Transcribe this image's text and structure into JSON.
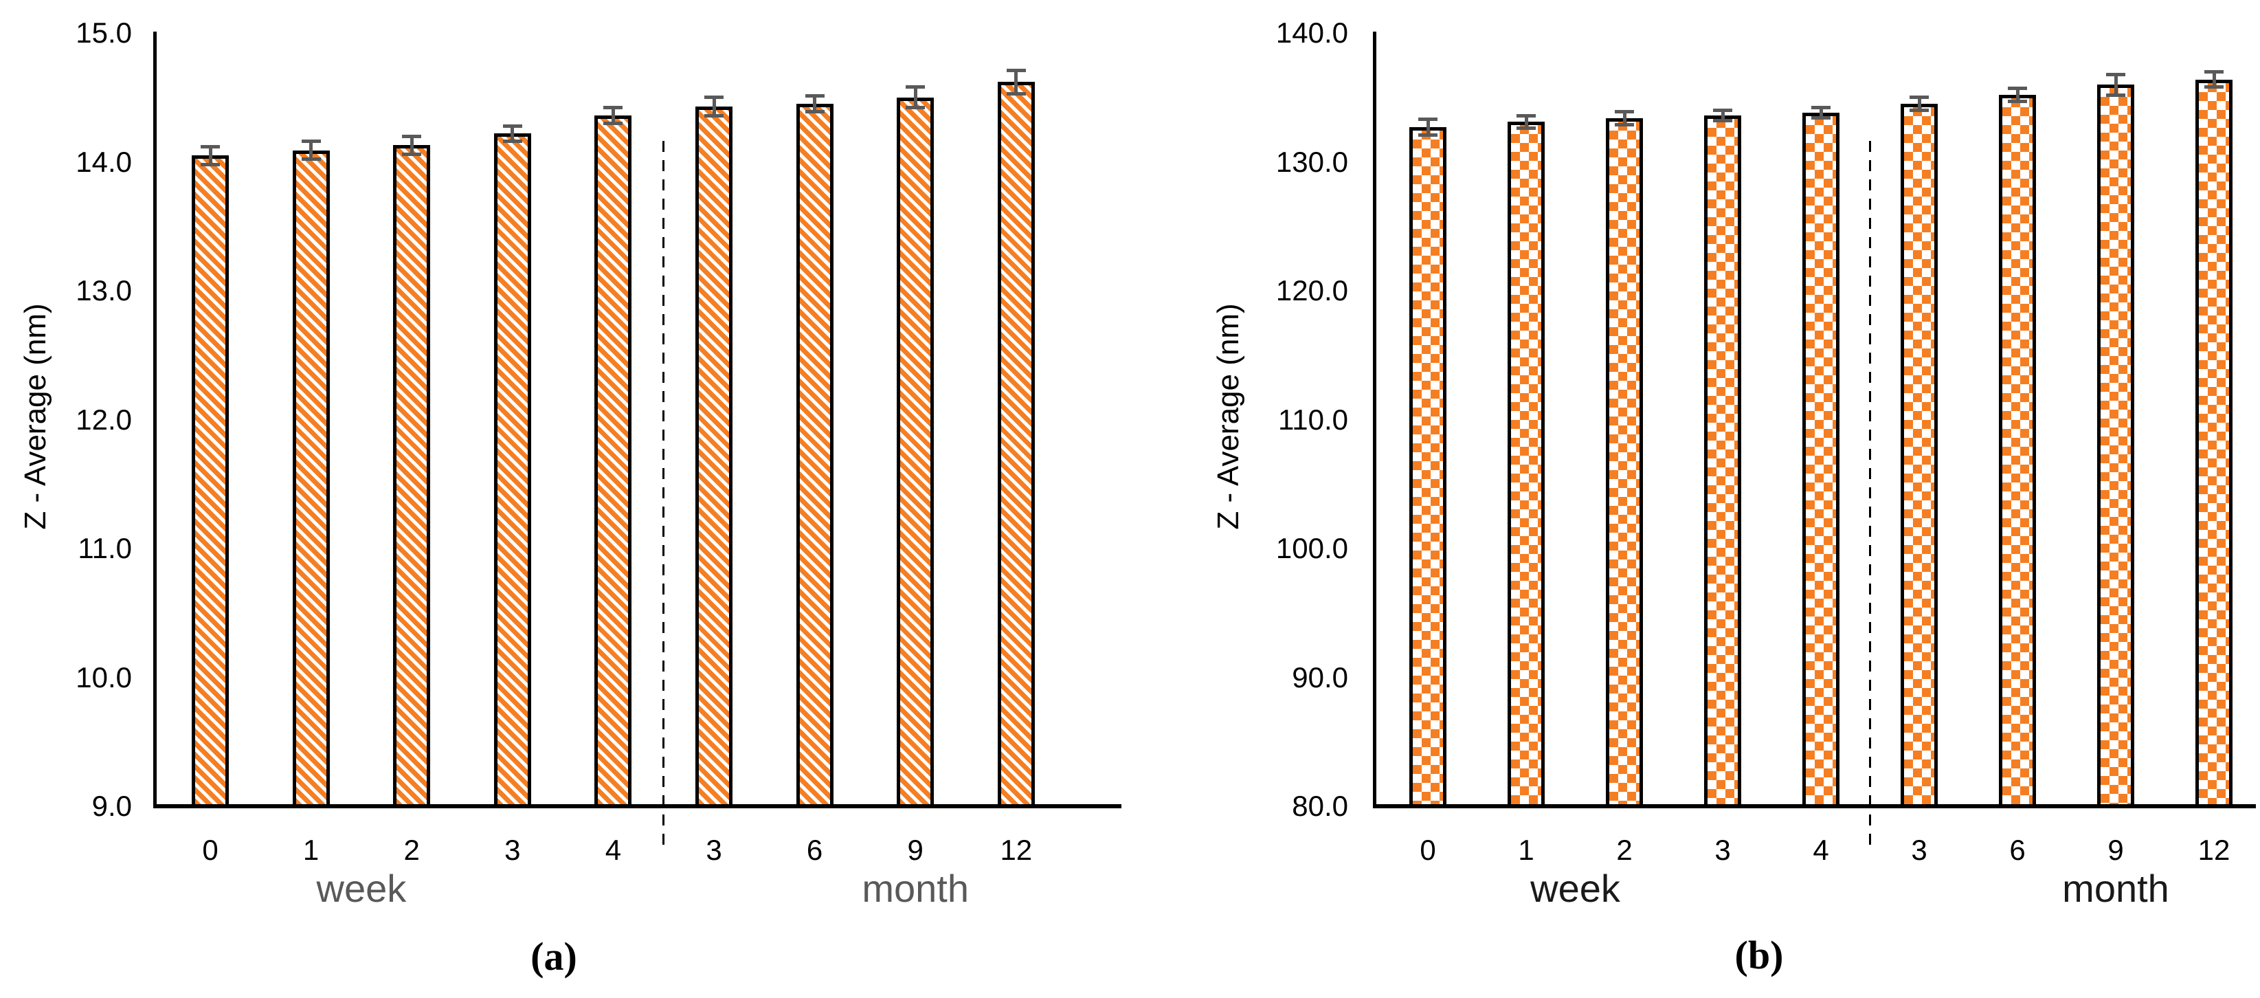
{
  "figure": {
    "background": "#ffffff",
    "axis_color": "#000000",
    "tick_label_color": "#000000"
  },
  "chart_data": [
    {
      "type": "bar",
      "caption": "(a)",
      "title": "",
      "xlabel": "",
      "ylabel": "Z - Average (nm)",
      "categories": [
        "0",
        "1",
        "2",
        "3",
        "4",
        "3",
        "6",
        "9",
        "12"
      ],
      "values": [
        14.05,
        14.09,
        14.13,
        14.22,
        14.36,
        14.43,
        14.45,
        14.5,
        14.62
      ],
      "errors": [
        0.07,
        0.07,
        0.07,
        0.06,
        0.06,
        0.07,
        0.06,
        0.08,
        0.09
      ],
      "ylim": [
        9.0,
        15.0
      ],
      "ytick_labels": [
        "15.0",
        "14.0",
        "13.0",
        "12.0",
        "11.0",
        "10.0",
        "9.0"
      ],
      "axis_groups": [
        {
          "label": "week",
          "category_indexes": [
            0,
            1,
            2,
            3,
            4
          ]
        },
        {
          "label": "month",
          "category_indexes": [
            5,
            6,
            7,
            8
          ]
        }
      ],
      "separator_after_index": 4,
      "grid": "off",
      "legend": "none",
      "bar_pattern": "diagonal-stripes",
      "bar_color": "#F57E22",
      "bar_border_color": "#000000",
      "error_bar_color": "#595959",
      "group_label_color": "#595959"
    },
    {
      "type": "bar",
      "caption": "(b)",
      "title": "",
      "xlabel": "",
      "ylabel": "Z - Average (nm)",
      "categories": [
        "0",
        "1",
        "2",
        "3",
        "4",
        "3",
        "6",
        "9",
        "12"
      ],
      "values": [
        132.7,
        133.1,
        133.4,
        133.6,
        133.8,
        134.5,
        135.2,
        136.0,
        136.4
      ],
      "errors": [
        0.6,
        0.5,
        0.5,
        0.4,
        0.4,
        0.5,
        0.5,
        0.8,
        0.6
      ],
      "ylim": [
        80.0,
        140.0
      ],
      "ytick_labels": [
        "140.0",
        "130.0",
        "120.0",
        "110.0",
        "100.0",
        "90.0",
        "80.0"
      ],
      "axis_groups": [
        {
          "label": "week",
          "category_indexes": [
            0,
            1,
            2,
            3,
            4
          ]
        },
        {
          "label": "month",
          "category_indexes": [
            5,
            6,
            7,
            8
          ]
        }
      ],
      "separator_after_index": 4,
      "grid": "off",
      "legend": "none",
      "bar_pattern": "checkerboard",
      "bar_color": "#F57E22",
      "bar_border_color": "#000000",
      "error_bar_color": "#595959",
      "group_label_color": "#1a1a1a"
    }
  ]
}
